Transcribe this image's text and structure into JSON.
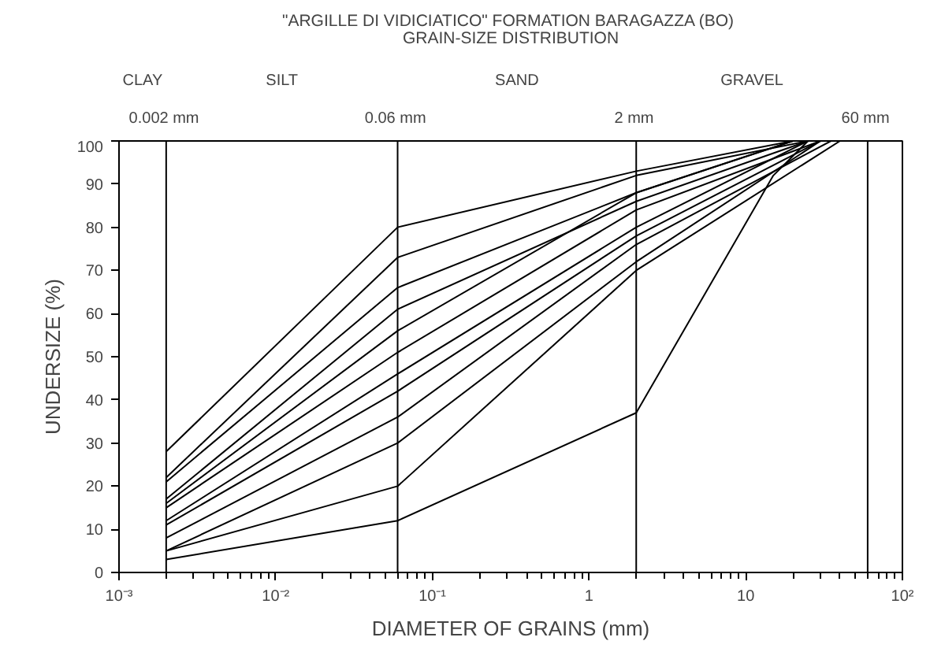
{
  "chart_data": {
    "type": "line",
    "title": "\"ARGILLE DI VIDICIATICO\" FORMATION  BARAGAZZA (BO)",
    "subtitle": "GRAIN-SIZE DISTRIBUTION",
    "xlabel": "DIAMETER OF GRAINS (mm)",
    "ylabel": "UNDERSIZE (%)",
    "log": "x",
    "grid": false,
    "marker": "none",
    "line_style": "solid",
    "xlim": [
      0.001,
      100
    ],
    "ylim": [
      0,
      100
    ],
    "xticks": [
      {
        "value": 0.001,
        "label": "10⁻³"
      },
      {
        "value": 0.01,
        "label": "10⁻²"
      },
      {
        "value": 0.1,
        "label": "10⁻¹"
      },
      {
        "value": 1,
        "label": "1"
      },
      {
        "value": 10,
        "label": "10"
      },
      {
        "value": 100,
        "label": "10²"
      }
    ],
    "yticks": [
      0,
      10,
      20,
      30,
      40,
      50,
      60,
      70,
      80,
      90,
      100
    ],
    "ref_lines": [
      {
        "axis": "x",
        "value": 0.002,
        "label": "0.002  mm",
        "color": "#000000"
      },
      {
        "axis": "x",
        "value": 0.06,
        "label": "0.06  mm",
        "color": "#000000"
      },
      {
        "axis": "x",
        "value": 2,
        "label": "2  mm",
        "color": "#000000"
      },
      {
        "axis": "x",
        "value": 60,
        "label": "60  mm",
        "color": "#000000"
      }
    ],
    "annotations": [
      "CLAY",
      "SILT",
      "SAND",
      "GRAVEL"
    ],
    "series": [
      {
        "color": "#000000",
        "x": [
          0.002,
          0.06,
          2,
          20
        ],
        "values": [
          28,
          80,
          93,
          100
        ]
      },
      {
        "color": "#000000",
        "x": [
          0.002,
          0.06,
          2,
          25
        ],
        "values": [
          22,
          73,
          92,
          100
        ]
      },
      {
        "color": "#000000",
        "x": [
          0.002,
          0.06,
          2,
          20
        ],
        "values": [
          21,
          66,
          88,
          100
        ]
      },
      {
        "color": "#000000",
        "x": [
          0.002,
          0.06,
          2,
          25
        ],
        "values": [
          17,
          61,
          86,
          100
        ]
      },
      {
        "color": "#000000",
        "x": [
          0.002,
          0.06,
          2,
          20
        ],
        "values": [
          16,
          56,
          88,
          100
        ]
      },
      {
        "color": "#000000",
        "x": [
          0.002,
          0.06,
          2,
          30
        ],
        "values": [
          15,
          51,
          84,
          100
        ]
      },
      {
        "color": "#000000",
        "x": [
          0.002,
          0.06,
          2,
          25
        ],
        "values": [
          12,
          46,
          80,
          100
        ]
      },
      {
        "color": "#000000",
        "x": [
          0.002,
          0.06,
          2,
          30
        ],
        "values": [
          11,
          42,
          78,
          100
        ]
      },
      {
        "color": "#000000",
        "x": [
          0.002,
          0.06,
          2,
          35
        ],
        "values": [
          8,
          36,
          76,
          100
        ]
      },
      {
        "color": "#000000",
        "x": [
          0.002,
          0.06,
          2,
          30
        ],
        "values": [
          5,
          30,
          72,
          100
        ]
      },
      {
        "color": "#000000",
        "x": [
          0.002,
          0.06,
          2,
          40
        ],
        "values": [
          5,
          20,
          70,
          100
        ]
      },
      {
        "color": "#000000",
        "x": [
          0.002,
          0.06,
          2,
          15,
          25
        ],
        "values": [
          3,
          12,
          37,
          92,
          100
        ]
      }
    ]
  }
}
